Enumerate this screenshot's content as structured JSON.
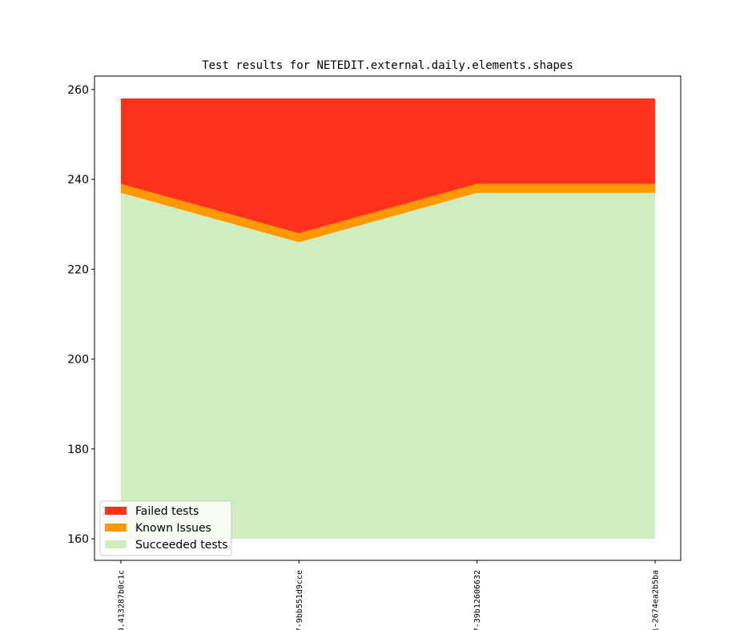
{
  "chart_data": {
    "type": "area",
    "title": "Test results for NETEDIT.external.daily.elements.shapes",
    "xlabel": "",
    "ylabel": "",
    "x": [
      "0.413287b0c1c",
      "7-9bb551d9cce",
      "7-39b12606632",
      "1-2674ea2b5ba"
    ],
    "ylim": [
      155.2,
      263.0
    ],
    "yticks": [
      160,
      180,
      200,
      220,
      240,
      260
    ],
    "baseline": 160,
    "series": [
      {
        "name": "Succeeded tests",
        "color": "#cfedbf",
        "values": [
          237,
          226,
          237,
          237
        ]
      },
      {
        "name": "Known Issues",
        "color": "#ff9900",
        "values": [
          2,
          2,
          2,
          2
        ]
      },
      {
        "name": "Failed tests",
        "color": "#ff331c",
        "values": [
          19,
          30,
          19,
          19
        ]
      }
    ],
    "legend": {
      "position": "lower-left",
      "order": [
        "Failed tests",
        "Known Issues",
        "Succeeded tests"
      ]
    },
    "grid": false
  }
}
